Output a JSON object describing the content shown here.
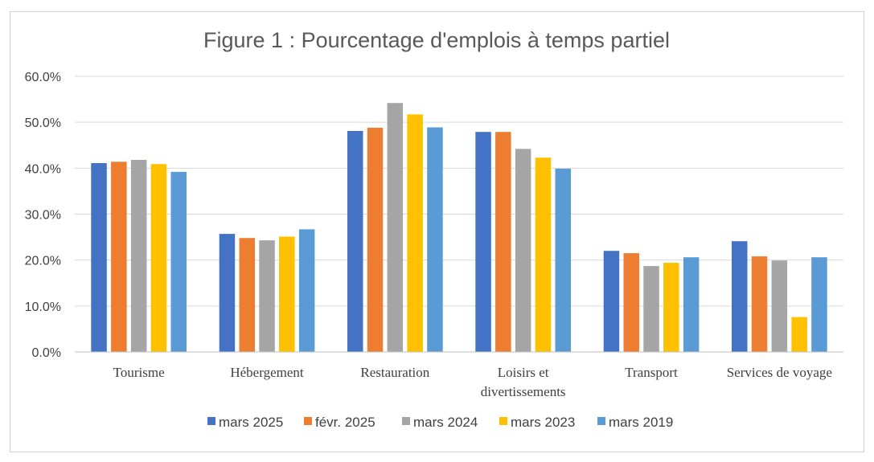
{
  "chart_data": {
    "type": "bar",
    "title": "Figure 1 : Pourcentage d'emplois à temps partiel",
    "xlabel": "",
    "ylabel": "",
    "ylim": [
      0,
      60
    ],
    "y_ticks": [
      "0.0%",
      "10.0%",
      "20.0%",
      "30.0%",
      "40.0%",
      "50.0%",
      "60.0%"
    ],
    "grid": true,
    "legend_position": "bottom",
    "categories": [
      [
        "Tourisme"
      ],
      [
        "Hébergement"
      ],
      [
        "Restauration"
      ],
      [
        "Loisirs et",
        "divertissements"
      ],
      [
        "Transport"
      ],
      [
        "Services de voyage"
      ]
    ],
    "series": [
      {
        "name": "mars 2025",
        "color": "#4472C4",
        "values": [
          41.1,
          25.7,
          48.1,
          47.9,
          22.0,
          24.1
        ]
      },
      {
        "name": "févr. 2025",
        "color": "#ED7D31",
        "values": [
          41.4,
          24.8,
          48.8,
          47.9,
          21.5,
          20.8
        ]
      },
      {
        "name": "mars 2024",
        "color": "#A5A5A5",
        "values": [
          41.8,
          24.3,
          54.2,
          44.2,
          18.7,
          19.9
        ]
      },
      {
        "name": "mars 2023",
        "color": "#FFC000",
        "values": [
          40.9,
          25.1,
          51.7,
          42.3,
          19.4,
          7.6
        ]
      },
      {
        "name": "mars 2019",
        "color": "#5B9BD5",
        "values": [
          39.2,
          26.7,
          48.9,
          39.9,
          20.6,
          20.6
        ]
      }
    ]
  }
}
